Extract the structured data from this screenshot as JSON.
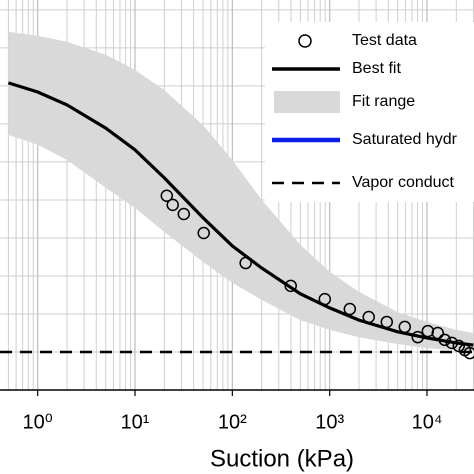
{
  "chart_data": {
    "type": "line",
    "x_label": "Suction (kPa)",
    "xscale": "log",
    "xlim": [
      0.41,
      30400
    ],
    "ylim": [
      0,
      10.26
    ],
    "xticks": [
      {
        "value": 1,
        "label": "10⁰"
      },
      {
        "value": 10,
        "label": "10¹"
      },
      {
        "value": 100,
        "label": "10²"
      },
      {
        "value": 1000,
        "label": "10³"
      },
      {
        "value": 10000,
        "label": "10⁴"
      }
    ],
    "xgrid_minor": [
      0.5,
      0.6,
      0.7,
      0.8,
      0.9,
      2,
      3,
      4,
      5,
      6,
      7,
      8,
      9,
      20,
      30,
      40,
      50,
      60,
      70,
      80,
      90,
      200,
      300,
      400,
      500,
      600,
      700,
      800,
      900,
      2000,
      3000,
      4000,
      5000,
      6000,
      7000,
      8000,
      9000,
      20000,
      30000
    ],
    "ygrid": [
      1,
      2,
      3,
      4,
      5,
      6,
      7,
      8,
      9,
      10
    ],
    "grid": true,
    "legend": "upper right",
    "series": [
      {
        "name": "Test data",
        "style": "scatter",
        "color": "#000000",
        "x": [
          21.2,
          24.4,
          31.7,
          50.8,
          137,
          398,
          891,
          1610,
          2520,
          3860,
          5910,
          8040,
          10200,
          12900,
          15200,
          18000,
          21200,
          24500,
          27500
        ],
        "values": [
          5.11,
          4.87,
          4.63,
          4.13,
          3.34,
          2.74,
          2.39,
          2.13,
          1.92,
          1.79,
          1.66,
          1.39,
          1.55,
          1.5,
          1.32,
          1.24,
          1.16,
          1.05,
          0.97
        ]
      },
      {
        "name": "Best fit",
        "style": "line",
        "color": "#000000",
        "x": [
          0.5,
          1,
          2,
          5,
          10,
          20,
          50,
          100,
          200,
          500,
          1000,
          2000,
          5000,
          10000,
          20000,
          30000
        ],
        "values": [
          8.08,
          7.84,
          7.5,
          6.89,
          6.32,
          5.58,
          4.53,
          3.79,
          3.21,
          2.53,
          2.16,
          1.84,
          1.53,
          1.37,
          1.24,
          1.18
        ]
      },
      {
        "name": "Fit range",
        "style": "band",
        "color": "#d9d9d9",
        "x": [
          0.5,
          1,
          2,
          5,
          10,
          20,
          50,
          100,
          200,
          500,
          1000,
          2000,
          5000,
          10000,
          20000,
          30000
        ],
        "upper": [
          9.42,
          9.32,
          9.16,
          8.82,
          8.42,
          7.89,
          6.97,
          6.05,
          5.0,
          3.82,
          3.11,
          2.58,
          2.05,
          1.79,
          1.58,
          1.5
        ],
        "lower": [
          6.71,
          6.45,
          6.05,
          5.32,
          4.79,
          4.16,
          3.37,
          2.82,
          2.37,
          1.84,
          1.58,
          1.39,
          1.21,
          1.1,
          1.05,
          1.03
        ]
      },
      {
        "name": "Saturated hydr",
        "style": "legend-only",
        "color": "#0a1ee6"
      },
      {
        "name": "Vapor conduct",
        "style": "hline",
        "color": "#000000",
        "value": 1.0
      }
    ]
  }
}
